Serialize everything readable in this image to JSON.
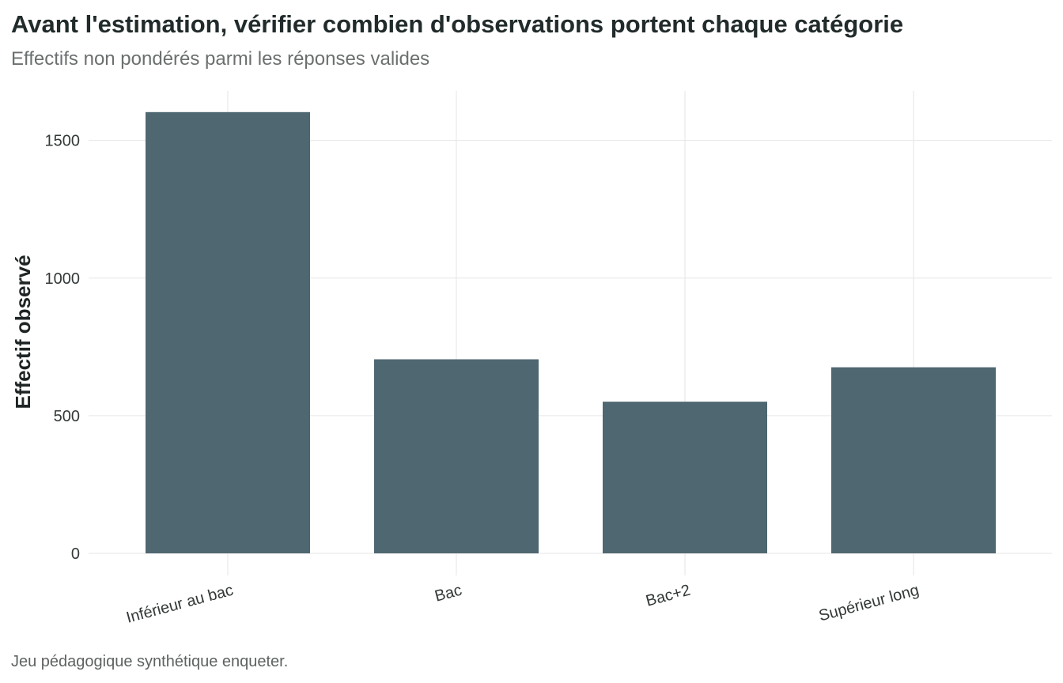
{
  "chart_data": {
    "type": "bar",
    "title": "Avant l'estimation, vérifier combien d'observations portent chaque catégorie",
    "subtitle": "Effectifs non pondérés parmi les réponses valides",
    "caption": "Jeu pédagogique synthétique enqueter.",
    "xlabel": "",
    "ylabel": "Effectif observé",
    "categories": [
      "Inférieur au bac",
      "Bac",
      "Bac+2",
      "Supérieur long"
    ],
    "values": [
      1603,
      705,
      551,
      676
    ],
    "ylim": [
      0,
      1680
    ],
    "yticks": [
      0,
      500,
      1000,
      1500
    ],
    "grid": true,
    "legend": "none",
    "bar_color": "#4f6770"
  }
}
